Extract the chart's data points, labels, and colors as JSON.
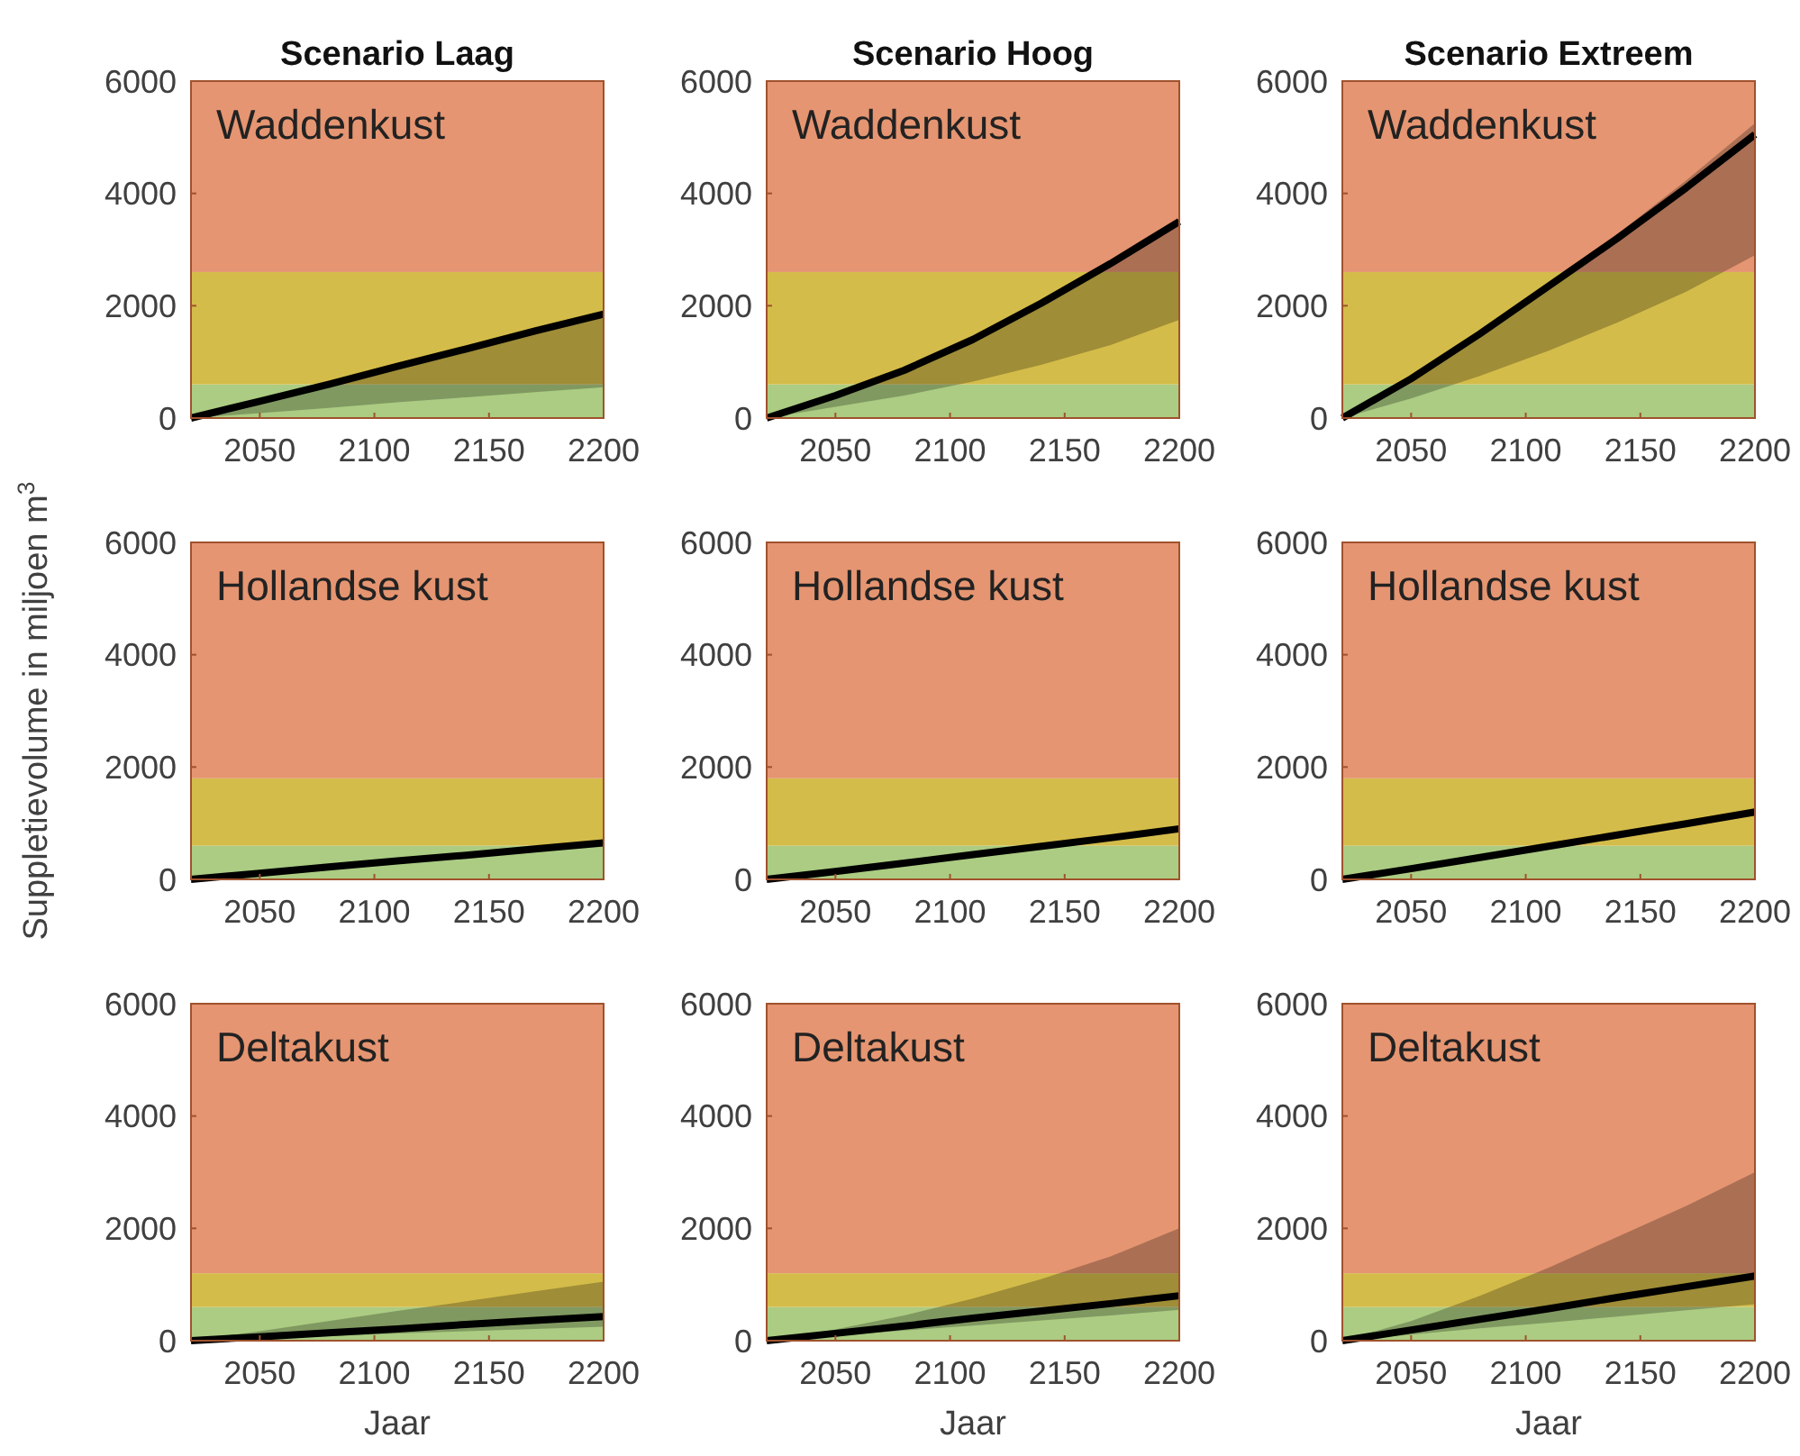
{
  "chart_data": [
    {
      "type": "line",
      "title": "Scenario Laag",
      "annotations": [
        "Waddenkust"
      ],
      "x": [
        2020,
        2050,
        2080,
        2110,
        2140,
        2170,
        2200
      ],
      "xlim": [
        2020,
        2200
      ],
      "xticks": [
        2050,
        2100,
        2150,
        2200
      ],
      "ylim": [
        0,
        6000
      ],
      "yticks": [
        0,
        2000,
        4000,
        6000
      ],
      "bands": [
        {
          "axis": "y",
          "from": 0,
          "to": 600,
          "color": "#abcc82"
        },
        {
          "axis": "y",
          "from": 600,
          "to": 2600,
          "color": "#d4bc4a"
        },
        {
          "axis": "y",
          "from": 2600,
          "to": 6000,
          "color": "#e59571"
        }
      ],
      "series": [
        {
          "color": "#000000",
          "values": [
            0,
            300,
            600,
            920,
            1230,
            1550,
            1850
          ],
          "lower": [
            0,
            90,
            180,
            280,
            370,
            460,
            550
          ],
          "upper": [
            0,
            300,
            600,
            920,
            1230,
            1550,
            1850
          ]
        }
      ]
    },
    {
      "type": "line",
      "title": "Scenario Hoog",
      "annotations": [
        "Waddenkust"
      ],
      "x": [
        2020,
        2050,
        2080,
        2110,
        2140,
        2170,
        2200
      ],
      "xlim": [
        2020,
        2200
      ],
      "xticks": [
        2050,
        2100,
        2150,
        2200
      ],
      "ylim": [
        0,
        6000
      ],
      "yticks": [
        0,
        2000,
        4000,
        6000
      ],
      "bands": [
        {
          "axis": "y",
          "from": 0,
          "to": 600,
          "color": "#abcc82"
        },
        {
          "axis": "y",
          "from": 600,
          "to": 2600,
          "color": "#d4bc4a"
        },
        {
          "axis": "y",
          "from": 2600,
          "to": 6000,
          "color": "#e59571"
        }
      ],
      "series": [
        {
          "color": "#000000",
          "values": [
            0,
            400,
            850,
            1400,
            2050,
            2750,
            3500
          ],
          "lower": [
            0,
            200,
            400,
            650,
            950,
            1300,
            1750
          ],
          "upper": [
            0,
            400,
            850,
            1400,
            2050,
            2750,
            3500
          ]
        }
      ]
    },
    {
      "type": "line",
      "title": "Scenario Extreem",
      "annotations": [
        "Waddenkust"
      ],
      "x": [
        2020,
        2050,
        2080,
        2110,
        2140,
        2170,
        2200
      ],
      "xlim": [
        2020,
        2200
      ],
      "xticks": [
        2050,
        2100,
        2150,
        2200
      ],
      "ylim": [
        0,
        6000
      ],
      "yticks": [
        0,
        2000,
        4000,
        6000
      ],
      "bands": [
        {
          "axis": "y",
          "from": 0,
          "to": 600,
          "color": "#abcc82"
        },
        {
          "axis": "y",
          "from": 600,
          "to": 2600,
          "color": "#d4bc4a"
        },
        {
          "axis": "y",
          "from": 2600,
          "to": 6000,
          "color": "#e59571"
        }
      ],
      "series": [
        {
          "color": "#000000",
          "values": [
            0,
            700,
            1500,
            2350,
            3200,
            4100,
            5050
          ],
          "lower": [
            0,
            350,
            750,
            1200,
            1700,
            2250,
            2900
          ],
          "upper": [
            0,
            720,
            1530,
            2400,
            3280,
            4230,
            5250
          ]
        }
      ]
    },
    {
      "type": "line",
      "ylabel": "Suppletievolume in miljoen m$^{3}$",
      "annotations": [
        "Hollandse kust"
      ],
      "x": [
        2020,
        2050,
        2080,
        2110,
        2140,
        2170,
        2200
      ],
      "xlim": [
        2020,
        2200
      ],
      "xticks": [
        2050,
        2100,
        2150,
        2200
      ],
      "ylim": [
        0,
        6000
      ],
      "yticks": [
        0,
        2000,
        4000,
        6000
      ],
      "bands": [
        {
          "axis": "y",
          "from": 0,
          "to": 600,
          "color": "#abcc82"
        },
        {
          "axis": "y",
          "from": 600,
          "to": 1800,
          "color": "#d4bc4a"
        },
        {
          "axis": "y",
          "from": 1800,
          "to": 6000,
          "color": "#e59571"
        }
      ],
      "series": [
        {
          "color": "#000000",
          "values": [
            0,
            110,
            220,
            330,
            430,
            540,
            650
          ]
        }
      ]
    },
    {
      "type": "line",
      "annotations": [
        "Hollandse kust"
      ],
      "x": [
        2020,
        2050,
        2080,
        2110,
        2140,
        2170,
        2200
      ],
      "xlim": [
        2020,
        2200
      ],
      "xticks": [
        2050,
        2100,
        2150,
        2200
      ],
      "ylim": [
        0,
        6000
      ],
      "yticks": [
        0,
        2000,
        4000,
        6000
      ],
      "bands": [
        {
          "axis": "y",
          "from": 0,
          "to": 600,
          "color": "#abcc82"
        },
        {
          "axis": "y",
          "from": 600,
          "to": 1800,
          "color": "#d4bc4a"
        },
        {
          "axis": "y",
          "from": 1800,
          "to": 6000,
          "color": "#e59571"
        }
      ],
      "series": [
        {
          "color": "#000000",
          "values": [
            0,
            140,
            290,
            440,
            590,
            740,
            900
          ]
        }
      ]
    },
    {
      "type": "line",
      "annotations": [
        "Hollandse kust"
      ],
      "x": [
        2020,
        2050,
        2080,
        2110,
        2140,
        2170,
        2200
      ],
      "xlim": [
        2020,
        2200
      ],
      "xticks": [
        2050,
        2100,
        2150,
        2200
      ],
      "ylim": [
        0,
        6000
      ],
      "yticks": [
        0,
        2000,
        4000,
        6000
      ],
      "bands": [
        {
          "axis": "y",
          "from": 0,
          "to": 600,
          "color": "#abcc82"
        },
        {
          "axis": "y",
          "from": 600,
          "to": 1800,
          "color": "#d4bc4a"
        },
        {
          "axis": "y",
          "from": 1800,
          "to": 6000,
          "color": "#e59571"
        }
      ],
      "series": [
        {
          "color": "#000000",
          "values": [
            0,
            190,
            390,
            590,
            790,
            990,
            1200
          ]
        }
      ]
    },
    {
      "type": "line",
      "xlabel": "Jaar",
      "annotations": [
        "Deltakust"
      ],
      "x": [
        2020,
        2050,
        2080,
        2110,
        2140,
        2170,
        2200
      ],
      "xlim": [
        2020,
        2200
      ],
      "xticks": [
        2050,
        2100,
        2150,
        2200
      ],
      "ylim": [
        0,
        6000
      ],
      "yticks": [
        0,
        2000,
        4000,
        6000
      ],
      "bands": [
        {
          "axis": "y",
          "from": 0,
          "to": 600,
          "color": "#abcc82"
        },
        {
          "axis": "y",
          "from": 600,
          "to": 1200,
          "color": "#d4bc4a"
        },
        {
          "axis": "y",
          "from": 1200,
          "to": 6000,
          "color": "#e59571"
        }
      ],
      "series": [
        {
          "color": "#000000",
          "values": [
            0,
            70,
            140,
            210,
            290,
            360,
            430
          ],
          "lower": [
            0,
            40,
            80,
            130,
            170,
            210,
            250
          ],
          "upper": [
            0,
            170,
            350,
            530,
            700,
            880,
            1050
          ]
        }
      ]
    },
    {
      "type": "line",
      "xlabel": "Jaar",
      "annotations": [
        "Deltakust"
      ],
      "x": [
        2020,
        2050,
        2080,
        2110,
        2140,
        2170,
        2200
      ],
      "xlim": [
        2020,
        2200
      ],
      "xticks": [
        2050,
        2100,
        2150,
        2200
      ],
      "ylim": [
        0,
        6000
      ],
      "yticks": [
        0,
        2000,
        4000,
        6000
      ],
      "bands": [
        {
          "axis": "y",
          "from": 0,
          "to": 600,
          "color": "#abcc82"
        },
        {
          "axis": "y",
          "from": 600,
          "to": 1200,
          "color": "#d4bc4a"
        },
        {
          "axis": "y",
          "from": 1200,
          "to": 6000,
          "color": "#e59571"
        }
      ],
      "series": [
        {
          "color": "#000000",
          "values": [
            0,
            130,
            260,
            400,
            530,
            660,
            800
          ],
          "lower": [
            0,
            90,
            180,
            270,
            360,
            450,
            550
          ],
          "upper": [
            0,
            200,
            450,
            750,
            1100,
            1500,
            2000
          ]
        }
      ]
    },
    {
      "type": "line",
      "xlabel": "Jaar",
      "annotations": [
        "Deltakust"
      ],
      "x": [
        2020,
        2050,
        2080,
        2110,
        2140,
        2170,
        2200
      ],
      "xlim": [
        2020,
        2200
      ],
      "xticks": [
        2050,
        2100,
        2150,
        2200
      ],
      "ylim": [
        0,
        6000
      ],
      "yticks": [
        0,
        2000,
        4000,
        6000
      ],
      "bands": [
        {
          "axis": "y",
          "from": 0,
          "to": 600,
          "color": "#abcc82"
        },
        {
          "axis": "y",
          "from": 600,
          "to": 1200,
          "color": "#d4bc4a"
        },
        {
          "axis": "y",
          "from": 1200,
          "to": 6000,
          "color": "#e59571"
        }
      ],
      "series": [
        {
          "color": "#000000",
          "values": [
            0,
            190,
            380,
            570,
            770,
            960,
            1150
          ],
          "lower": [
            0,
            110,
            220,
            320,
            430,
            540,
            650
          ],
          "upper": [
            0,
            350,
            800,
            1300,
            1850,
            2400,
            3000
          ]
        }
      ]
    }
  ]
}
